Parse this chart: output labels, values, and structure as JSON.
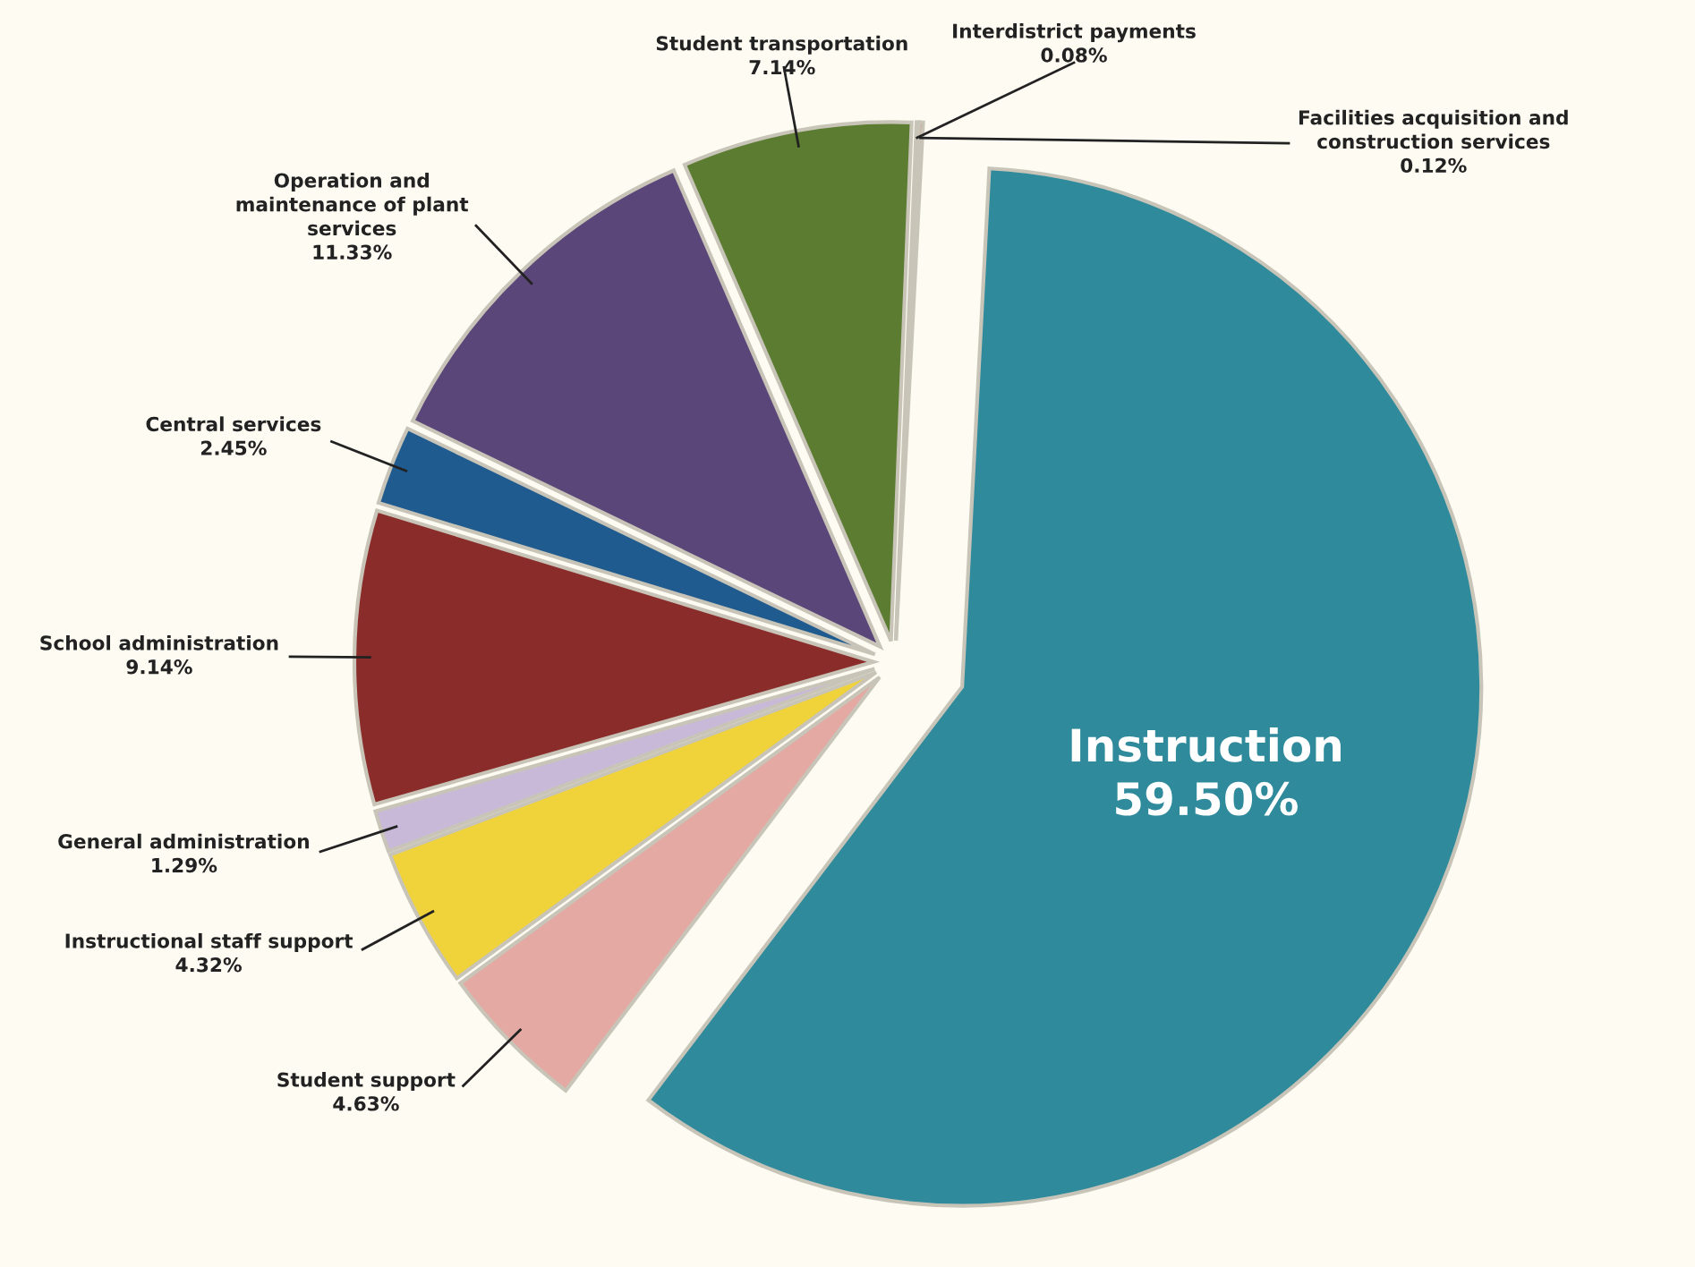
{
  "chart_data": {
    "type": "pie",
    "categories": [
      "Instruction",
      "Student support",
      "Instructional staff support",
      "General administration",
      "School administration",
      "Central services",
      "Operation and maintenance of plant services",
      "Student transportation",
      "Interdistrict payments",
      "Facilities acquisition and construction services"
    ],
    "values": [
      59.5,
      4.63,
      4.32,
      1.29,
      9.14,
      2.45,
      11.33,
      7.14,
      0.08,
      0.12
    ],
    "value_labels": [
      "59.50%",
      "4.63%",
      "4.32%",
      "1.29%",
      "9.14%",
      "2.45%",
      "11.33%",
      "7.14%",
      "0.08%",
      "0.12%"
    ],
    "colors": [
      "#2f8a9c",
      "#e4a9a2",
      "#f0d23a",
      "#c9b9d9",
      "#8a2c2a",
      "#1f5b8f",
      "#5b4679",
      "#5b7c31",
      "#111111",
      "#e0691f"
    ]
  }
}
